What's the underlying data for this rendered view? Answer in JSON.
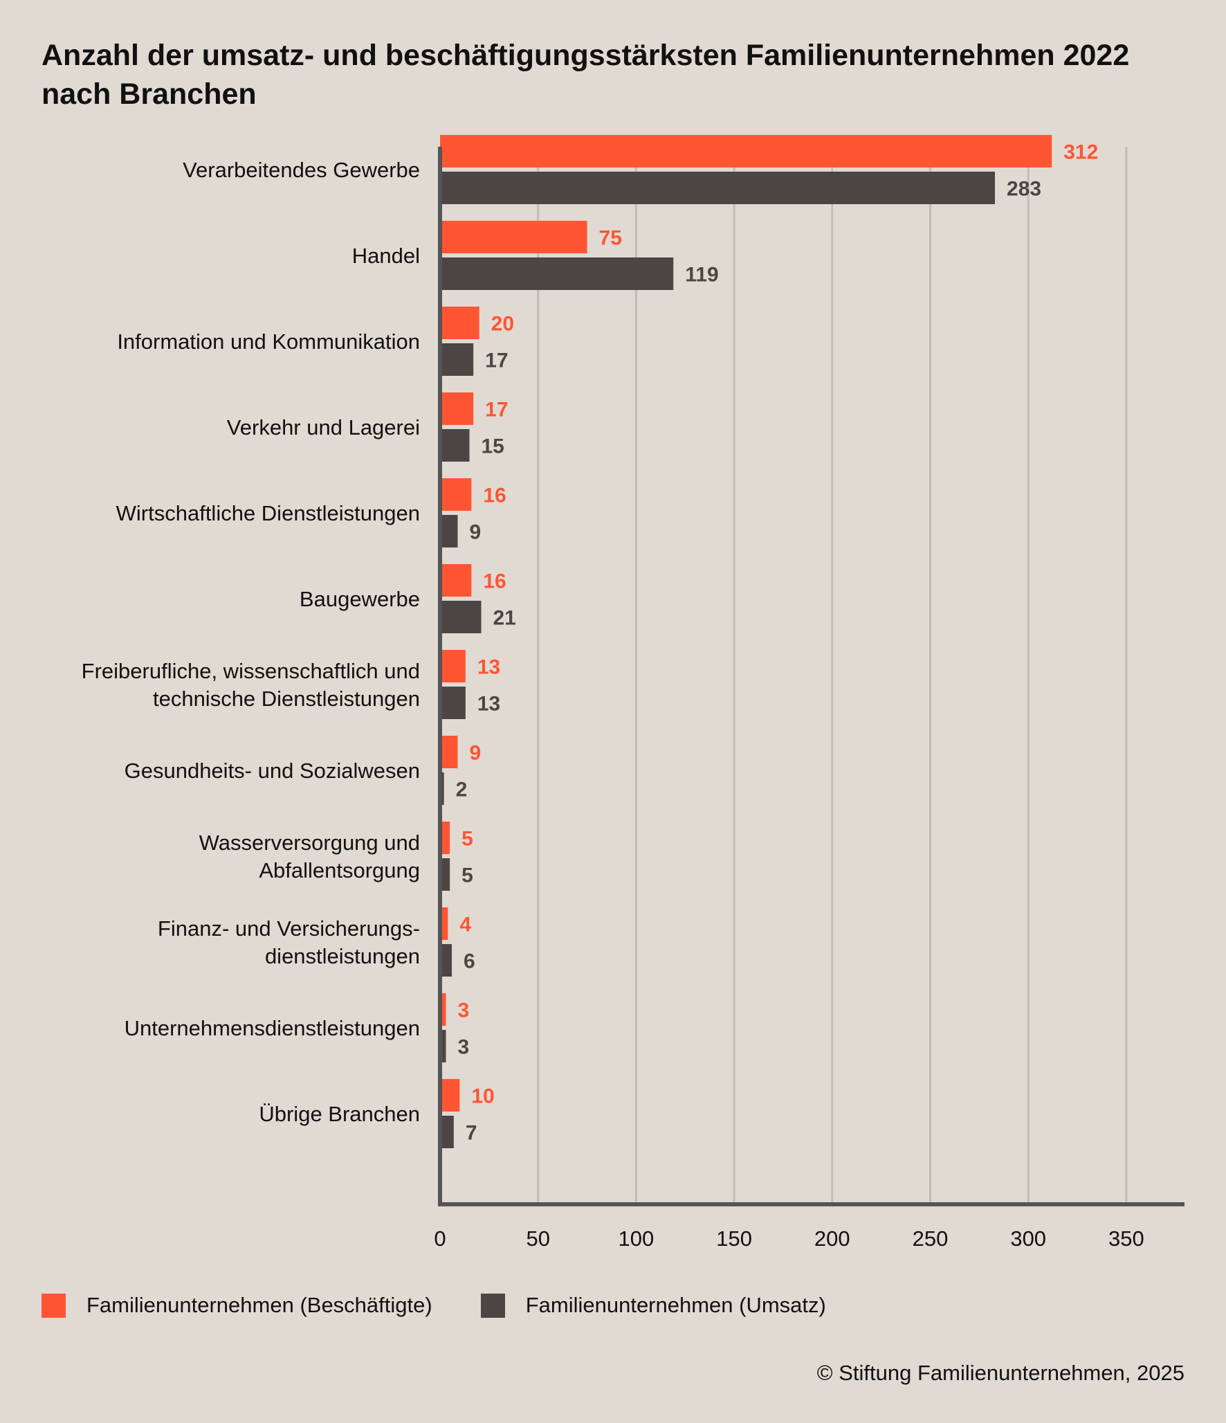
{
  "title": "Anzahl der umsatz- und beschäftigungsstärksten Familienunternehmen 2022 nach Branchen",
  "credit": "© Stiftung Familienunternehmen, 2025",
  "colors": {
    "beschaeftigte": "#ff5533",
    "umsatz": "#4b4643",
    "axis": "#555555",
    "grid": "#c2bcb6"
  },
  "chart_data": {
    "type": "bar",
    "orientation": "horizontal",
    "categories": [
      [
        "Verarbeitendes Gewerbe"
      ],
      [
        "Handel"
      ],
      [
        "Information und Kommunikation"
      ],
      [
        "Verkehr und Lagerei"
      ],
      [
        "Wirtschaftliche Dienstleistungen"
      ],
      [
        "Baugewerbe"
      ],
      [
        "Freiberufliche, wissenschaftlich und",
        "technische Dienstleistungen"
      ],
      [
        "Gesundheits- und Sozialwesen"
      ],
      [
        "Wasserversorgung und",
        "Abfallentsorgung"
      ],
      [
        "Finanz- und Versicherungs-",
        "dienstleistungen"
      ],
      [
        "Unternehmensdienstleistungen"
      ],
      [
        "Übrige Branchen"
      ]
    ],
    "series": [
      {
        "name": "Familienunternehmen (Beschäftigte)",
        "values": [
          312,
          75,
          20,
          17,
          16,
          16,
          13,
          9,
          5,
          4,
          3,
          10
        ]
      },
      {
        "name": "Familienunternehmen (Umsatz)",
        "values": [
          283,
          119,
          17,
          15,
          9,
          21,
          13,
          2,
          5,
          6,
          3,
          7
        ]
      }
    ],
    "xticks": [
      0,
      50,
      100,
      150,
      200,
      250,
      300,
      350
    ],
    "xlim": [
      0,
      378
    ],
    "grid": true,
    "legend": "bottom-left"
  }
}
